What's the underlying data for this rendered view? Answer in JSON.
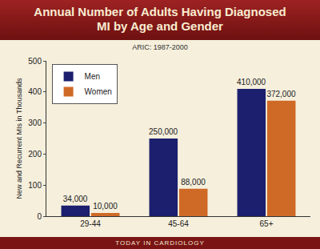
{
  "chart_data": {
    "type": "bar",
    "title": "Annual Number of Adults Having Diagnosed MI by Age and Gender",
    "subtitle": "ARIC: 1987-2000",
    "y_label": "New and Recurrent MIs in Thousands",
    "annotations": [
      "TODAY IN CARDIOLOGY"
    ],
    "categories": [
      "29-44",
      "45-64",
      "65+"
    ],
    "series": [
      {
        "name": "Men",
        "color": "#1b1f6e",
        "values": [
          34,
          250,
          410
        ],
        "value_labels": [
          "34,000",
          "250,000",
          "410,000"
        ]
      },
      {
        "name": "Women",
        "color": "#cf6a26",
        "values": [
          10,
          88,
          372
        ],
        "value_labels": [
          "10,000",
          "88,000",
          "372,000"
        ]
      }
    ],
    "ylim": [
      0,
      500
    ],
    "yticks": [
      0,
      100,
      200,
      300,
      400,
      500
    ],
    "grid": false,
    "legend": "upper left",
    "data_labels": true
  }
}
